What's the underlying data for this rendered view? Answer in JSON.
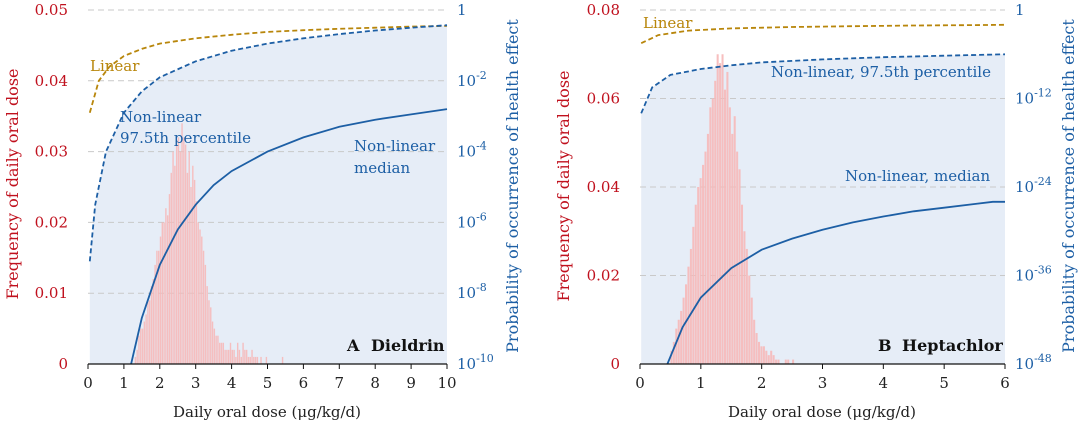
{
  "chart_data": [
    {
      "type": "bar",
      "panel_letter": "A",
      "panel_name": "Dieldrin",
      "xlabel": "Daily oral dose (μg/kg/d)",
      "ylabel_left": "Frequency of daily oral dose",
      "ylabel_right": "Probability of occurrence of health effect",
      "xlim": [
        0,
        10
      ],
      "xticks": [
        "0",
        "1",
        "2",
        "3",
        "4",
        "5",
        "6",
        "7",
        "8",
        "9",
        "10"
      ],
      "ylim_left": [
        0,
        0.05
      ],
      "yticks_left": [
        "0",
        "0.01",
        "0.02",
        "0.03",
        "0.04",
        "0.05"
      ],
      "right_log_range": [
        -10,
        0
      ],
      "yticks_right": [
        {
          "base": "1",
          "exp": "",
          "log": 0
        },
        {
          "base": "10",
          "exp": "-2",
          "log": -2
        },
        {
          "base": "10",
          "exp": "-4",
          "log": -4
        },
        {
          "base": "10",
          "exp": "-6",
          "log": -6
        },
        {
          "base": "10",
          "exp": "-8",
          "log": -8
        },
        {
          "base": "10",
          "exp": "-10",
          "log": -10
        }
      ],
      "histogram": {
        "bin_start": 1.2,
        "bin_width": 0.05,
        "values": [
          0.0,
          0.0,
          0.001,
          0.002,
          0.004,
          0.005,
          0.005,
          0.006,
          0.007,
          0.009,
          0.009,
          0.011,
          0.012,
          0.014,
          0.016,
          0.016,
          0.018,
          0.02,
          0.02,
          0.022,
          0.021,
          0.024,
          0.027,
          0.03,
          0.028,
          0.031,
          0.032,
          0.03,
          0.034,
          0.032,
          0.031,
          0.027,
          0.03,
          0.025,
          0.028,
          0.026,
          0.023,
          0.02,
          0.019,
          0.018,
          0.016,
          0.014,
          0.011,
          0.009,
          0.008,
          0.006,
          0.005,
          0.004,
          0.004,
          0.003,
          0.003,
          0.003,
          0.002,
          0.002,
          0.002,
          0.003,
          0.002,
          0.002,
          0.001,
          0.003,
          0.002,
          0.001,
          0.003,
          0.002,
          0.002,
          0.001,
          0.001,
          0.002,
          0.001,
          0.001,
          0.001,
          0.0,
          0.001,
          0.0,
          0.0,
          0.001,
          0.0,
          0.0,
          0.0,
          0.0,
          0.0,
          0.0,
          0.0,
          0.0,
          0.001,
          0.0,
          0.0,
          0.0,
          0.0,
          0.0,
          0.0,
          0.0,
          0.0,
          0.0,
          0.0,
          0.0,
          0.0,
          0.0,
          0.0,
          0.0
        ]
      },
      "series": [
        {
          "name": "Linear",
          "style": "dashed",
          "color": "#b8860b",
          "x": [
            0.05,
            0.3,
            0.6,
            1,
            1.5,
            2,
            3,
            4,
            5,
            6,
            7,
            8,
            9,
            10
          ],
          "log_p": [
            -2.9,
            -2.0,
            -1.6,
            -1.3,
            -1.1,
            -0.95,
            -0.8,
            -0.7,
            -0.62,
            -0.57,
            -0.53,
            -0.5,
            -0.47,
            -0.45
          ]
        },
        {
          "name": "Non-linear 97.5th percentile",
          "style": "dashed",
          "color": "#1d5fa5",
          "x": [
            0.05,
            0.2,
            0.5,
            1,
            1.5,
            2,
            3,
            4,
            5,
            6,
            7,
            8,
            9,
            10
          ],
          "log_p": [
            -7.1,
            -5.5,
            -4.0,
            -2.9,
            -2.3,
            -1.9,
            -1.45,
            -1.15,
            -0.95,
            -0.8,
            -0.68,
            -0.58,
            -0.5,
            -0.43
          ]
        },
        {
          "name": "Non-linear median",
          "style": "solid",
          "color": "#1d5fa5",
          "x": [
            1.2,
            1.5,
            2,
            2.5,
            3,
            3.5,
            4,
            5,
            6,
            7,
            8,
            9,
            10
          ],
          "log_p": [
            -10,
            -8.7,
            -7.2,
            -6.2,
            -5.5,
            -4.95,
            -4.55,
            -4.0,
            -3.6,
            -3.3,
            -3.1,
            -2.95,
            -2.8
          ]
        }
      ],
      "annotations": {
        "linear": "Linear",
        "p975_line1": "Non-linear",
        "p975_line2": "97.5th percentile",
        "median_line1": "Non-linear",
        "median_line2": "median"
      }
    },
    {
      "type": "bar",
      "panel_letter": "B",
      "panel_name": "Heptachlor",
      "xlabel": "Daily oral dose (μg/kg/d)",
      "ylabel_left": "Frequency of daily oral dose",
      "ylabel_right": "Probability of occurrence of health effect",
      "xlim": [
        0,
        6
      ],
      "xticks": [
        "0",
        "1",
        "2",
        "3",
        "4",
        "5",
        "6"
      ],
      "ylim_left": [
        0,
        0.08
      ],
      "yticks_left": [
        "0",
        "0.02",
        "0.04",
        "0.06",
        "0.08"
      ],
      "right_log_range": [
        -48,
        0
      ],
      "yticks_right": [
        {
          "base": "1",
          "exp": "",
          "log": 0
        },
        {
          "base": "10",
          "exp": "-12",
          "log": -12
        },
        {
          "base": "10",
          "exp": "-24",
          "log": -24
        },
        {
          "base": "10",
          "exp": "-36",
          "log": -36
        },
        {
          "base": "10",
          "exp": "-48",
          "log": -48
        }
      ],
      "histogram": {
        "bin_start": 0.5,
        "bin_width": 0.04,
        "values": [
          0.003,
          0.005,
          0.008,
          0.01,
          0.012,
          0.015,
          0.018,
          0.022,
          0.026,
          0.031,
          0.036,
          0.04,
          0.042,
          0.045,
          0.048,
          0.052,
          0.058,
          0.06,
          0.064,
          0.07,
          0.068,
          0.07,
          0.062,
          0.066,
          0.058,
          0.052,
          0.056,
          0.048,
          0.044,
          0.036,
          0.03,
          0.026,
          0.02,
          0.015,
          0.01,
          0.007,
          0.005,
          0.004,
          0.004,
          0.003,
          0.002,
          0.003,
          0.002,
          0.001,
          0.001,
          0.0,
          0.0,
          0.001,
          0.001,
          0.0,
          0.001,
          0.0
        ]
      },
      "series": [
        {
          "name": "Linear",
          "style": "dashed",
          "color": "#b8860b",
          "x": [
            0.02,
            0.3,
            0.8,
            1.5,
            2.5,
            3.5,
            4.5,
            5.5,
            6
          ],
          "log_p": [
            -4.5,
            -3.4,
            -2.8,
            -2.5,
            -2.3,
            -2.2,
            -2.1,
            -2.05,
            -2.0
          ]
        },
        {
          "name": "Non-linear, 97.5th percentile",
          "style": "dashed",
          "color": "#1d5fa5",
          "x": [
            0.02,
            0.2,
            0.5,
            1,
            1.5,
            2,
            3,
            4,
            5,
            6
          ],
          "log_p": [
            -14,
            -10.5,
            -8.8,
            -8.0,
            -7.5,
            -7.1,
            -6.7,
            -6.4,
            -6.2,
            -6.0
          ]
        },
        {
          "name": "Non-linear, median",
          "style": "solid",
          "color": "#1d5fa5",
          "x": [
            0.45,
            0.7,
            1,
            1.5,
            2,
            2.5,
            3,
            3.5,
            4,
            4.5,
            5,
            5.5,
            5.8,
            6
          ],
          "log_p": [
            -48,
            -43,
            -39,
            -35,
            -32.5,
            -31,
            -29.8,
            -28.8,
            -28,
            -27.3,
            -26.8,
            -26.3,
            -26,
            -26
          ]
        }
      ],
      "annotations": {
        "linear": "Linear",
        "p975_line1": "Non-linear, 97.5th percentile",
        "median_line1": "Non-linear, median"
      }
    }
  ]
}
